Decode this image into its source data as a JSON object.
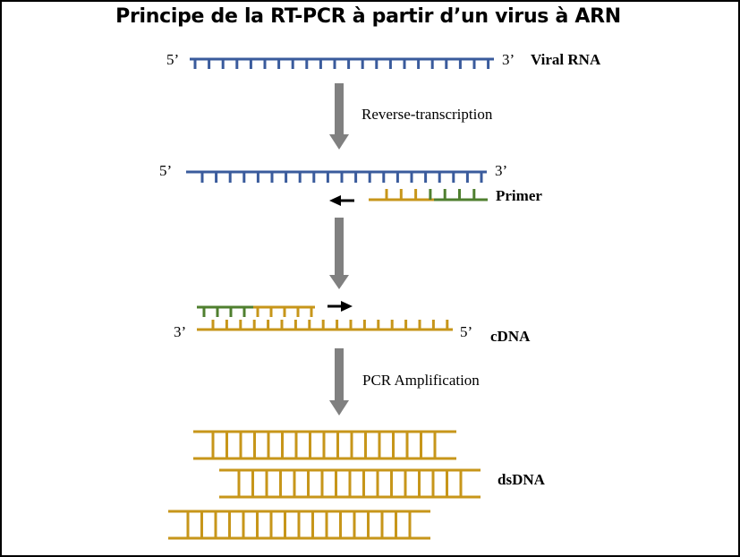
{
  "title": "Principe de la RT-PCR à partir d’un virus à ARN",
  "colors": {
    "rna": "#3a5b9c",
    "primer": "#4f7f2f",
    "cdna": "#c7961a",
    "arrow": "#808080",
    "text": "#000000"
  },
  "labels": {
    "five_prime": "5’",
    "three_prime": "3’",
    "viral_rna": "Viral RNA",
    "reverse_transcription": "Reverse-transcription",
    "primer": "Primer",
    "cdna": "cDNA",
    "pcr_amplification": "PCR Amplification",
    "dsdna": "dsDNA"
  },
  "icons": {
    "step_arrow": "gray-down-arrow",
    "direction_left": "black-left-arrow",
    "direction_right": "black-right-arrow"
  }
}
